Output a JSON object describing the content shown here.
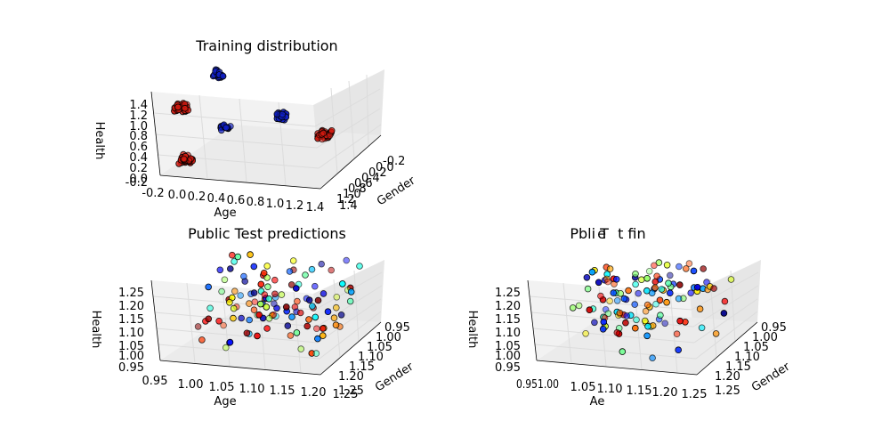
{
  "colors": {
    "pane_light": "#f2f2f2",
    "pane_mid": "#e6e6e6",
    "pane_dark": "#ebebeb",
    "grid": "#e0e0e0",
    "red": "#d11a10",
    "blue": "#1020c8",
    "marker_edge": "#000000"
  },
  "chart_data": [
    {
      "type": "scatter",
      "subtype": "3d",
      "title": "Training distribution",
      "xlabel": "Age",
      "ylabel": "Gender",
      "zlabel": "Health",
      "xlim": [
        -0.2,
        1.4
      ],
      "ylim": [
        -0.2,
        1.4
      ],
      "zlim": [
        -0.2,
        1.4
      ],
      "xticks": [
        "-0.2",
        "0.0",
        "0.2",
        "0.4",
        "0.6",
        "0.8",
        "1.0",
        "1.2",
        "1.4"
      ],
      "yticks": [
        "-0.2",
        "0.0",
        "0.2",
        "0.4",
        "0.6",
        "0.8",
        "1.0",
        "1.2",
        "1.4"
      ],
      "zticks": [
        "-0.2",
        "0.0",
        "0.2",
        "0.4",
        "0.6",
        "0.8",
        "1.0",
        "1.2",
        "1.4"
      ],
      "series": [
        {
          "color": "red",
          "clusters": [
            {
              "center": [
                0,
                0,
                0
              ],
              "spread": 0.06,
              "count": 40
            },
            {
              "center": [
                0,
                0,
                1
              ],
              "spread": 0.06,
              "count": 40
            },
            {
              "center": [
                1,
                1,
                0
              ],
              "spread": 0.06,
              "count": 40
            }
          ]
        },
        {
          "color": "blue",
          "clusters": [
            {
              "center": [
                1,
                0,
                1
              ],
              "spread": 0.05,
              "count": 35
            },
            {
              "center": [
                0,
                1,
                1
              ],
              "spread": 0.05,
              "count": 20
            },
            {
              "center": [
                0,
                1,
                0
              ],
              "spread": 0.05,
              "count": 18
            }
          ]
        }
      ]
    },
    {
      "type": "scatter",
      "subtype": "3d",
      "title": "Public Test predictions",
      "xlabel": "Age",
      "ylabel": "Gender",
      "zlabel": "Health",
      "xlim": [
        0.95,
        1.25
      ],
      "ylim": [
        0.95,
        1.25
      ],
      "zlim": [
        0.95,
        1.25
      ],
      "xticks": [
        "0.95",
        "1.00",
        "1.05",
        "1.10",
        "1.15",
        "1.20",
        "1.25"
      ],
      "yticks": [
        "0.95",
        "1.00",
        "1.05",
        "1.10",
        "1.15",
        "1.20",
        "1.25"
      ],
      "zticks": [
        "0.95",
        "1.00",
        "1.05",
        "1.10",
        "1.15",
        "1.20",
        "1.25"
      ],
      "point_count": 120,
      "colormap": "jet"
    },
    {
      "type": "scatter",
      "subtype": "3d",
      "title": "Pbli T  t fin",
      "title_overprint": "e",
      "xlabel": "Ae",
      "ylabel": "Gender",
      "zlabel": "Health",
      "xlim": [
        0.95,
        1.25
      ],
      "ylim": [
        0.95,
        1.25
      ],
      "zlim": [
        0.95,
        1.25
      ],
      "xticks": [
        "0.951.00",
        "1.05",
        "1.10",
        "1.15",
        "1.20",
        "1.25"
      ],
      "yticks": [
        "0.95",
        "1.00",
        "1.05",
        "1.10",
        "1.15",
        "1.20",
        "1.25"
      ],
      "zticks": [
        "0.95",
        "1.00",
        "1.05",
        "1.10",
        "1.15",
        "1.20",
        "1.25"
      ],
      "point_count": 120,
      "colormap": "jet"
    }
  ]
}
